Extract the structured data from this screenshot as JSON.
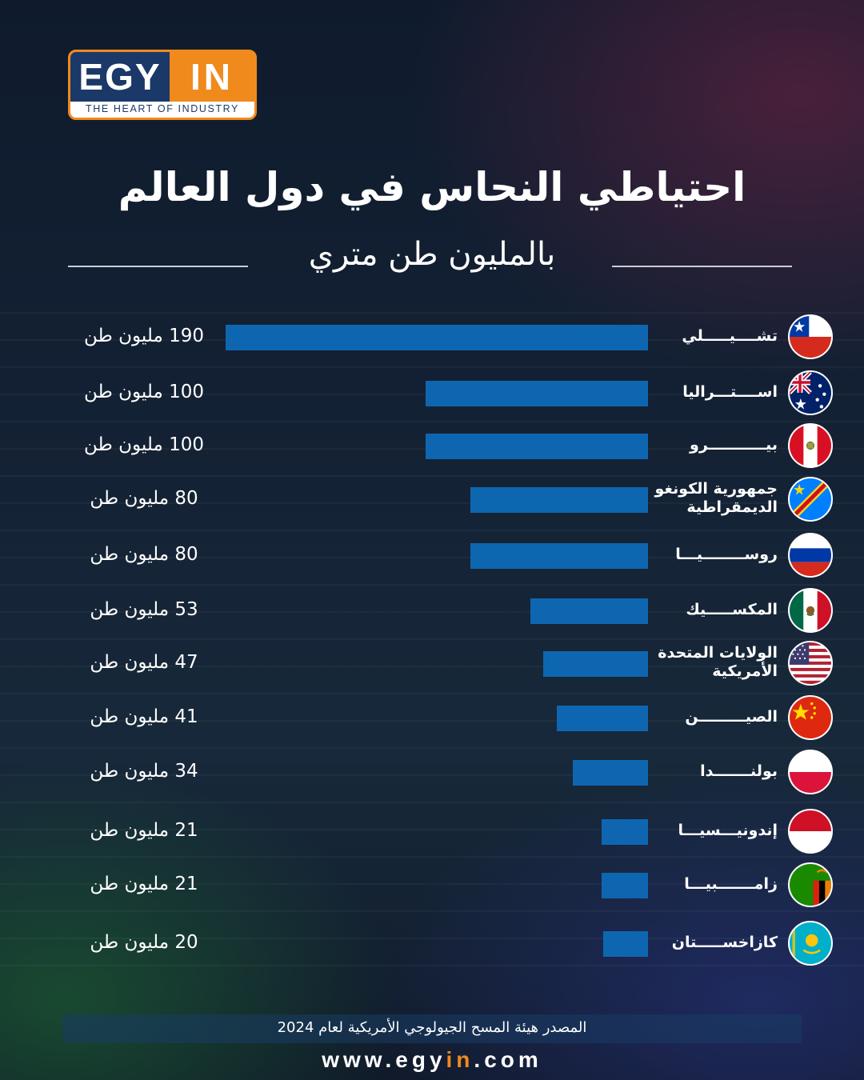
{
  "logo": {
    "brand_left": "EGY",
    "brand_right": "IN",
    "tagline": "THE HEART OF INDUSTRY"
  },
  "header": {
    "title": "احتياطي النحاس في دول العالم",
    "subtitle": "بالمليون طن متري"
  },
  "colors": {
    "bar": "#0f66b0",
    "accent": "#f08a1c",
    "brand_blue": "#1a3968"
  },
  "chart_data": {
    "type": "bar",
    "orientation": "horizontal",
    "title": "احتياطي النحاس في دول العالم",
    "subtitle": "بالمليون طن متري",
    "xlabel": "",
    "ylabel": "",
    "categories": [
      [
        "تشــــيـــــلي"
      ],
      [
        "اســــتـــراليا"
      ],
      [
        "بيـــــــــــرو"
      ],
      [
        "جمهورية الكونغو",
        "الديمقراطية"
      ],
      [
        "روســــــــيـــا"
      ],
      [
        "المكســـــيك"
      ],
      [
        "الولايات المتحدة",
        "الأمريكية"
      ],
      [
        "الصيـــــــــن"
      ],
      [
        "بولنـــــــدا"
      ],
      [
        "إندونيـــسيـــا"
      ],
      [
        "زامـــــــبيـــا"
      ],
      [
        "كازاخســـــتان"
      ]
    ],
    "values": [
      190,
      100,
      100,
      80,
      80,
      53,
      47,
      41,
      34,
      21,
      21,
      20
    ],
    "value_labels": [
      "190 مليون طن",
      "100 مليون طن",
      "100 مليون طن",
      "80 مليون طن",
      "80 مليون طن",
      "53 مليون طن",
      "47 مليون طن",
      "41 مليون طن",
      "34 مليون طن",
      "21 مليون طن",
      "21 مليون طن",
      "20 مليون طن"
    ],
    "flags": [
      "chile-flag-icon",
      "australia-flag-icon",
      "peru-flag-icon",
      "dr-congo-flag-icon",
      "russia-flag-icon",
      "mexico-flag-icon",
      "usa-flag-icon",
      "china-flag-icon",
      "poland-flag-icon",
      "indonesia-flag-icon",
      "zambia-flag-icon",
      "kazakhstan-flag-icon"
    ],
    "xlim": [
      0,
      190
    ],
    "grid": false,
    "legend": "none"
  },
  "footer": {
    "source": "المصدر هيئة المسح الجيولوجي الأمريكية لعام 2024",
    "website_prefix": "www.egy",
    "website_accent": "in",
    "website_suffix": ".com"
  }
}
